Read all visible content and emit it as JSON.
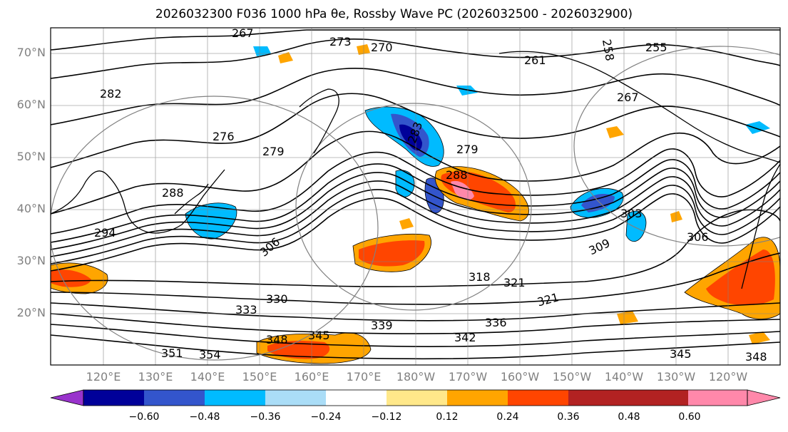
{
  "title": "2026032300 F036 1000 hPa θe, Rossby Wave PC (2026032500 - 2026032900)",
  "lat_labels": [
    "70°N",
    "60°N",
    "50°N",
    "40°N",
    "30°N",
    "20°N"
  ],
  "lon_labels": [
    "120°E",
    "130°E",
    "140°E",
    "150°E",
    "160°E",
    "170°E",
    "180°W",
    "170°W",
    "160°W",
    "150°W",
    "140°W",
    "130°W",
    "120°W"
  ],
  "colorbar": {
    "ticks": [
      "−0.60",
      "−0.48",
      "−0.36",
      "−0.24",
      "−0.12",
      "0.12",
      "0.24",
      "0.36",
      "0.48",
      "0.60"
    ],
    "colors": [
      "#9933cc",
      "#000099",
      "#3355cc",
      "#00bbff",
      "#aaddf7",
      "#ffffff",
      "#ffe88a",
      "#ffa500",
      "#ff4500",
      "#b22222",
      "#ff88aa"
    ]
  },
  "contour_labels": [
    {
      "text": "255"
    },
    {
      "text": "258"
    },
    {
      "text": "261"
    },
    {
      "text": "267"
    },
    {
      "text": "267"
    },
    {
      "text": "270"
    },
    {
      "text": "273"
    },
    {
      "text": "276"
    },
    {
      "text": "279"
    },
    {
      "text": "279"
    },
    {
      "text": "282"
    },
    {
      "text": "283"
    },
    {
      "text": "288"
    },
    {
      "text": "288"
    },
    {
      "text": "294"
    },
    {
      "text": "303"
    },
    {
      "text": "306"
    },
    {
      "text": "306"
    },
    {
      "text": "309"
    },
    {
      "text": "318"
    },
    {
      "text": "321"
    },
    {
      "text": "321"
    },
    {
      "text": "330"
    },
    {
      "text": "333"
    },
    {
      "text": "336"
    },
    {
      "text": "339"
    },
    {
      "text": "342"
    },
    {
      "text": "345"
    },
    {
      "text": "345"
    },
    {
      "text": "348"
    },
    {
      "text": "348"
    },
    {
      "text": "351"
    },
    {
      "text": "354"
    }
  ]
}
